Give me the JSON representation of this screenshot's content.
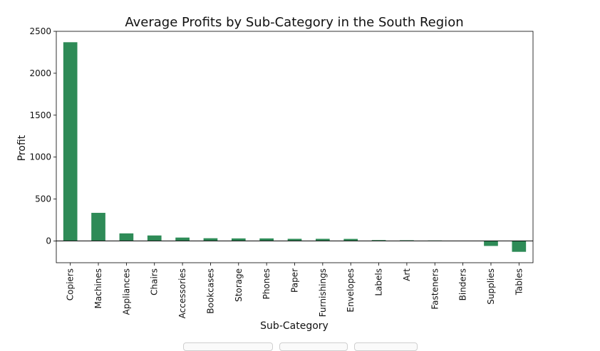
{
  "chart_data": {
    "type": "bar",
    "title": "Average Profits by Sub-Category in the South Region",
    "xlabel": "Sub-Category",
    "ylabel": "Profit",
    "categories": [
      "Copiers",
      "Machines",
      "Appliances",
      "Chairs",
      "Accessories",
      "Bookcases",
      "Storage",
      "Phones",
      "Paper",
      "Furnishings",
      "Envelopes",
      "Labels",
      "Art",
      "Fasteners",
      "Binders",
      "Supplies",
      "Tables"
    ],
    "values": [
      2370,
      335,
      90,
      65,
      40,
      32,
      30,
      30,
      25,
      25,
      24,
      10,
      8,
      5,
      0,
      -60,
      -130
    ],
    "ylim": [
      -260,
      2500
    ],
    "yticks": [
      0,
      500,
      1000,
      1500,
      2000,
      2500
    ],
    "bar_color": "#2e8b57",
    "grid": false,
    "legend": "none"
  },
  "tabs": [
    {
      "label": ""
    },
    {
      "label": ""
    },
    {
      "label": ""
    }
  ]
}
